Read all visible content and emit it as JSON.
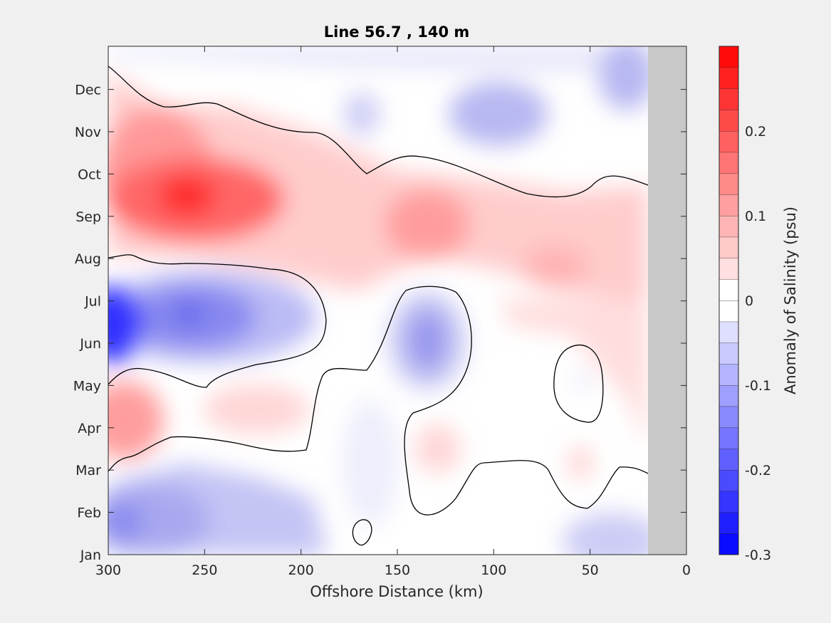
{
  "chart_data": {
    "type": "heatmap",
    "title": "Line 56.7 , 140 m",
    "xlabel": "Offshore Distance (km)",
    "ylabel": "",
    "xlim": [
      300,
      0
    ],
    "x_reversed": true,
    "xticks": [
      300,
      250,
      200,
      150,
      100,
      50,
      0
    ],
    "ylim": [
      "Jan",
      "Dec"
    ],
    "yticks": [
      "Jan",
      "Feb",
      "Mar",
      "Apr",
      "May",
      "Jun",
      "Jul",
      "Aug",
      "Sep",
      "Oct",
      "Nov",
      "Dec"
    ],
    "no_data_region_km": [
      0,
      20
    ],
    "no_data_color": "#c8c8c8",
    "contour_levels": [
      0
    ],
    "colorbar": {
      "label": "Anomaly of Salinity (psu)",
      "range": [
        -0.3,
        0.3
      ],
      "step": 0.025,
      "ticks": [
        "-0.3",
        "-0.2",
        "-0.1",
        "0",
        "0.1",
        "0.2"
      ],
      "tick_values": [
        -0.3,
        -0.2,
        -0.1,
        0,
        0.1,
        0.2
      ],
      "colormap": "blue-white-red"
    },
    "features": [
      {
        "kind": "positive",
        "center_km": 258,
        "center_month": "Sep",
        "peak": 0.25
      },
      {
        "kind": "positive",
        "center_km": 135,
        "center_month": "Sep",
        "peak": 0.1
      },
      {
        "kind": "positive",
        "center_km": 295,
        "center_month": "Apr",
        "peak": 0.1
      },
      {
        "kind": "positive",
        "center_km": 215,
        "center_month": "Apr",
        "peak": 0.04
      },
      {
        "kind": "negative",
        "center_km": 300,
        "center_month": "Jun",
        "peak": -0.3
      },
      {
        "kind": "negative",
        "center_km": 258,
        "center_month": "Jul",
        "peak": -0.17
      },
      {
        "kind": "negative",
        "center_km": 135,
        "center_month": "Jun",
        "peak": -0.13
      },
      {
        "kind": "negative",
        "center_km": 290,
        "center_month": "Feb",
        "peak": -0.14
      },
      {
        "kind": "negative",
        "center_km": 100,
        "center_month": "Nov",
        "peak": -0.09
      }
    ]
  }
}
